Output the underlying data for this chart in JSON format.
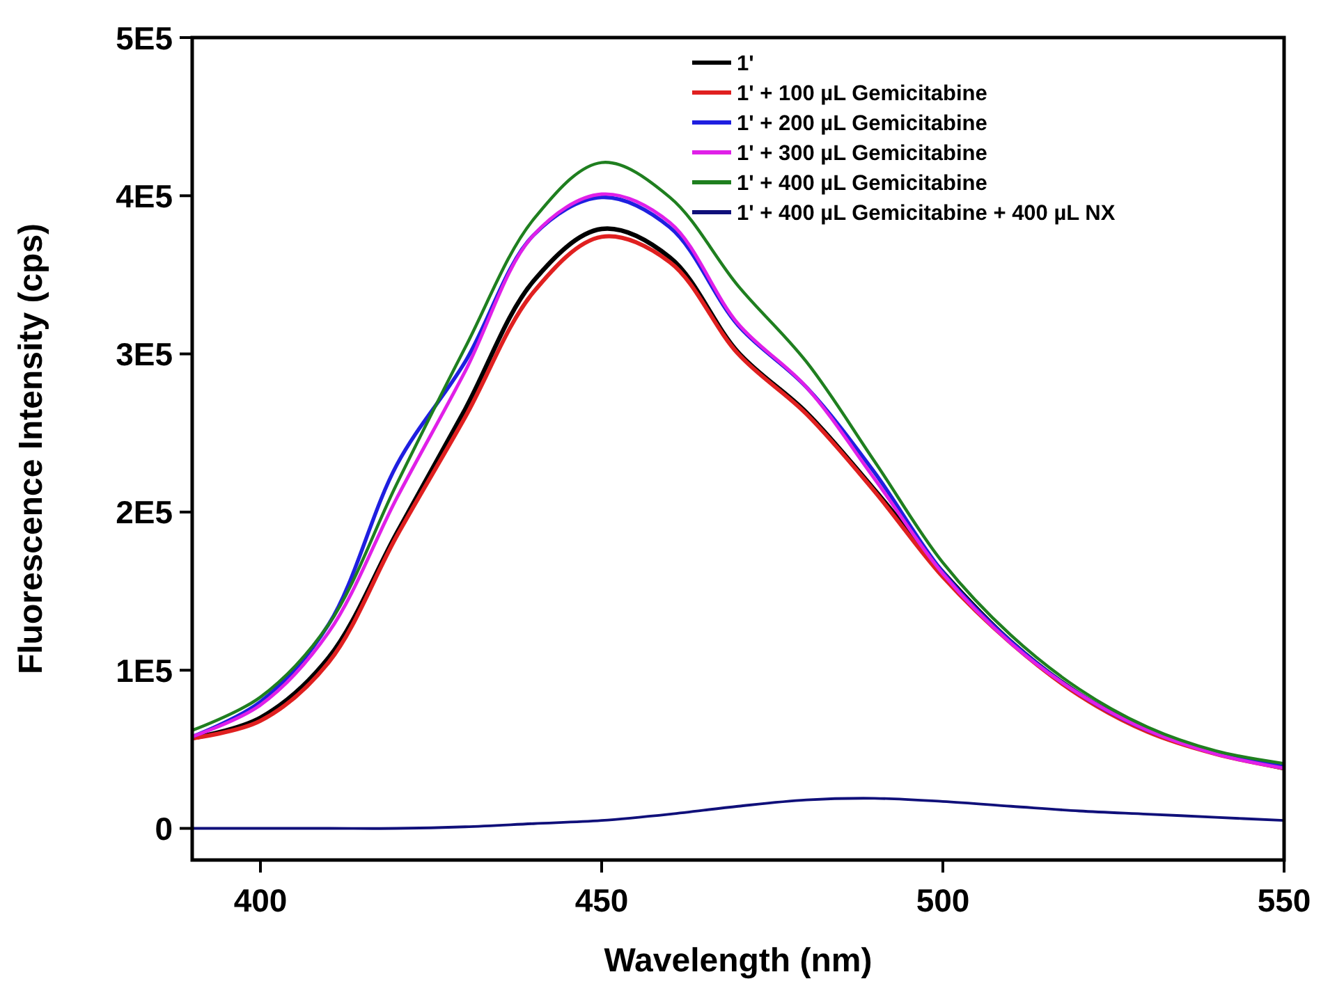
{
  "chart_data": {
    "type": "line",
    "xlabel": "Wavelength (nm)",
    "ylabel": "Fluorescence Intensity (cps)",
    "x": [
      390,
      400,
      410,
      420,
      430,
      440,
      450,
      460,
      470,
      480,
      490,
      500,
      510,
      520,
      530,
      540,
      550
    ],
    "xlim": [
      390,
      550
    ],
    "xticks": [
      400,
      450,
      500,
      550
    ],
    "ylim": [
      -20000,
      500000
    ],
    "yticks": [
      0,
      {
        "value": 100000,
        "label": "1E5"
      },
      {
        "value": 200000,
        "label": "2E5"
      },
      {
        "value": 300000,
        "label": "3E5"
      },
      {
        "value": 400000,
        "label": "4E5"
      },
      {
        "value": 500000,
        "label": "5E5"
      }
    ],
    "grid": false,
    "legend": "top right",
    "marker": "none",
    "line_style": "solid",
    "series": [
      {
        "name": "1'",
        "color": "#000000",
        "values": [
          57000,
          70000,
          108000,
          187000,
          265000,
          346000,
          379000,
          361000,
          301000,
          263000,
          214000,
          162000,
          118000,
          85000,
          62000,
          48000,
          38000
        ]
      },
      {
        "name": "1' + 100 µL Gemicitabine",
        "color": "#e02020",
        "values": [
          57000,
          68000,
          105000,
          185000,
          260000,
          339000,
          374000,
          358000,
          300000,
          262000,
          213000,
          159000,
          117000,
          84000,
          61000,
          47000,
          38000
        ]
      },
      {
        "name": "1' + 200 µL Gemicitabine",
        "color": "#1f1fe0",
        "values": [
          58000,
          80000,
          129000,
          230000,
          295000,
          375000,
          399000,
          380000,
          318000,
          279000,
          225000,
          162000,
          118000,
          85000,
          62000,
          48000,
          39000
        ]
      },
      {
        "name": "1' + 300 µL Gemicitabine",
        "color": "#e020e8",
        "values": [
          58000,
          78000,
          124000,
          209000,
          289000,
          375000,
          401000,
          383000,
          319000,
          279000,
          221000,
          161000,
          117000,
          85000,
          62000,
          47000,
          38000
        ]
      },
      {
        "name": "1' + 400 µL Gemicitabine",
        "color": "#1f7f1f",
        "values": [
          62000,
          83000,
          129000,
          218000,
          304000,
          385000,
          421000,
          399000,
          343000,
          295000,
          232000,
          168000,
          122000,
          88000,
          64000,
          49000,
          41000
        ]
      },
      {
        "name": "1' + 400 µL Gemicitabine + 400 µL NX",
        "color": "#10107a",
        "values": [
          0,
          0,
          0,
          0,
          1000,
          3000,
          5000,
          9000,
          14000,
          18000,
          19000,
          17000,
          14000,
          11000,
          9000,
          7000,
          5000
        ]
      }
    ]
  }
}
